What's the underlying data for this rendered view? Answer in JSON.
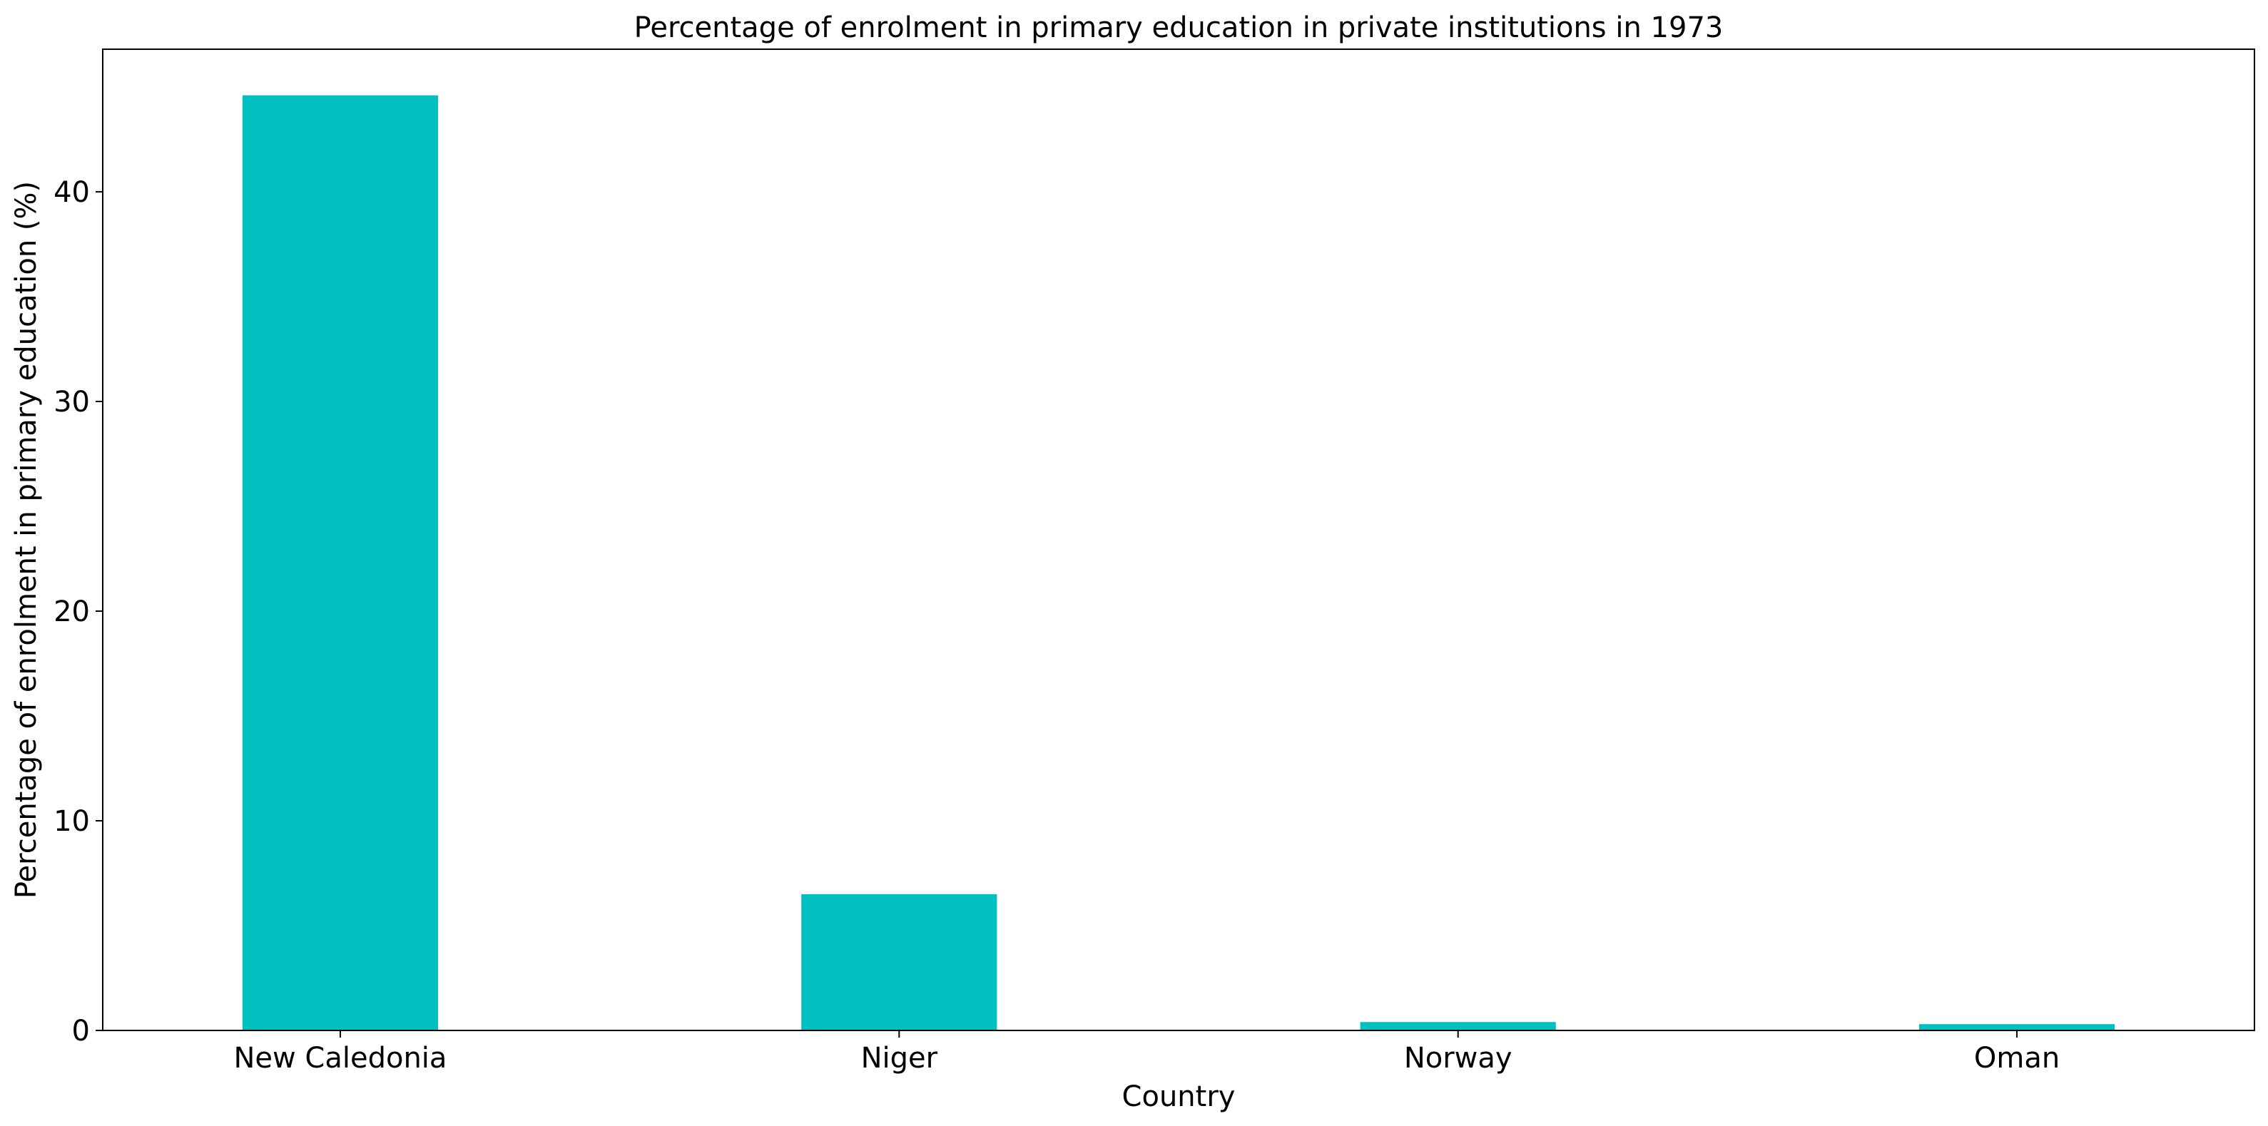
{
  "chart_data": {
    "type": "bar",
    "title": "Percentage of enrolment in primary education in private institutions in 1973",
    "xlabel": "Country",
    "ylabel": "Percentage of enrolment in primary education (%)",
    "categories": [
      "New Caledonia",
      "Niger",
      "Norway",
      "Oman"
    ],
    "values": [
      44.6,
      6.5,
      0.4,
      0.3
    ],
    "ylim": [
      0,
      46.8
    ],
    "yticks": [
      0,
      10,
      20,
      30,
      40
    ],
    "bar_color": "#00bfbf",
    "grid": false,
    "legend": "none"
  }
}
